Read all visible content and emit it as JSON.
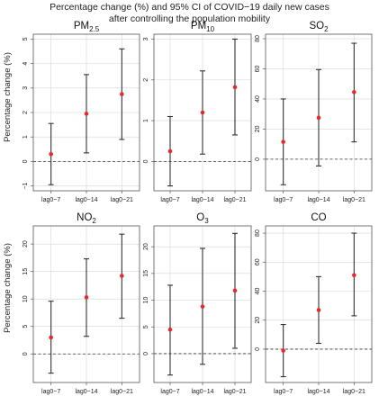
{
  "figure": {
    "title_line1": "Percentage change (%) and 95% CI of COVID−19 daily new cases",
    "title_line2": "after controlling the population mobility",
    "ylabel": "Percentage change (%)"
  },
  "colors": {
    "point": "#e8282b",
    "errorbar": "#333333",
    "grid": "#d6d6d6",
    "frame": "#555555",
    "reference": "#333333"
  },
  "chart_data": [
    {
      "type": "scatter",
      "title": "PM",
      "title_sub": "2.5",
      "categories": [
        "lag0−7",
        "lag0−14",
        "lag0−21"
      ],
      "estimate": [
        0.3,
        1.95,
        2.75
      ],
      "ci_low": [
        -0.95,
        0.35,
        0.9
      ],
      "ci_high": [
        1.55,
        3.55,
        4.6
      ],
      "ylim": [
        -1.2,
        5.2
      ],
      "yticks": [
        -1,
        0,
        1,
        2,
        3,
        4,
        5
      ],
      "reference_y": 0
    },
    {
      "type": "scatter",
      "title": "PM",
      "title_sub": "10",
      "categories": [
        "lag0−7",
        "lag0−14",
        "lag0−21"
      ],
      "estimate": [
        0.25,
        1.2,
        1.82
      ],
      "ci_low": [
        -0.6,
        0.18,
        0.65
      ],
      "ci_high": [
        1.1,
        2.22,
        3.0
      ],
      "ylim": [
        -0.72,
        3.12
      ],
      "yticks": [
        0,
        1,
        2,
        3
      ],
      "reference_y": 0
    },
    {
      "type": "scatter",
      "title": "SO",
      "title_sub": "2",
      "categories": [
        "lag0−7",
        "lag0−14",
        "lag0−21"
      ],
      "estimate": [
        11.5,
        27.5,
        44.5
      ],
      "ci_low": [
        -17,
        -4.5,
        11.5
      ],
      "ci_high": [
        40,
        59.5,
        77
      ],
      "ylim": [
        -21,
        83
      ],
      "yticks": [
        0,
        20,
        40,
        60,
        80
      ],
      "reference_y": 0
    },
    {
      "type": "scatter",
      "title": "NO",
      "title_sub": "2",
      "categories": [
        "lag0−7",
        "lag0−14",
        "lag0−21"
      ],
      "estimate": [
        3.0,
        10.3,
        14.2
      ],
      "ci_low": [
        -3.5,
        3.2,
        6.5
      ],
      "ci_high": [
        9.6,
        17.3,
        21.8
      ],
      "ylim": [
        -5.2,
        23.3
      ],
      "yticks": [
        0,
        5,
        10,
        15,
        20
      ],
      "reference_y": 0
    },
    {
      "type": "scatter",
      "title": "O",
      "title_sub": "3",
      "categories": [
        "lag0−7",
        "lag0−14",
        "lag0−21"
      ],
      "estimate": [
        4.5,
        8.8,
        11.8
      ],
      "ci_low": [
        -4,
        -2,
        1
      ],
      "ci_high": [
        12.8,
        19.7,
        22.5
      ],
      "ylim": [
        -5.4,
        23.9
      ],
      "yticks": [
        0,
        5,
        10,
        15,
        20
      ],
      "reference_y": 0
    },
    {
      "type": "scatter",
      "title": "CO",
      "title_sub": "",
      "categories": [
        "lag0−7",
        "lag0−14",
        "lag0−21"
      ],
      "estimate": [
        -1,
        27,
        51
      ],
      "ci_low": [
        -19,
        4,
        23
      ],
      "ci_high": [
        17,
        50,
        80
      ],
      "ylim": [
        -23,
        85
      ],
      "yticks": [
        0,
        20,
        40,
        60,
        80
      ],
      "reference_y": 0
    }
  ]
}
